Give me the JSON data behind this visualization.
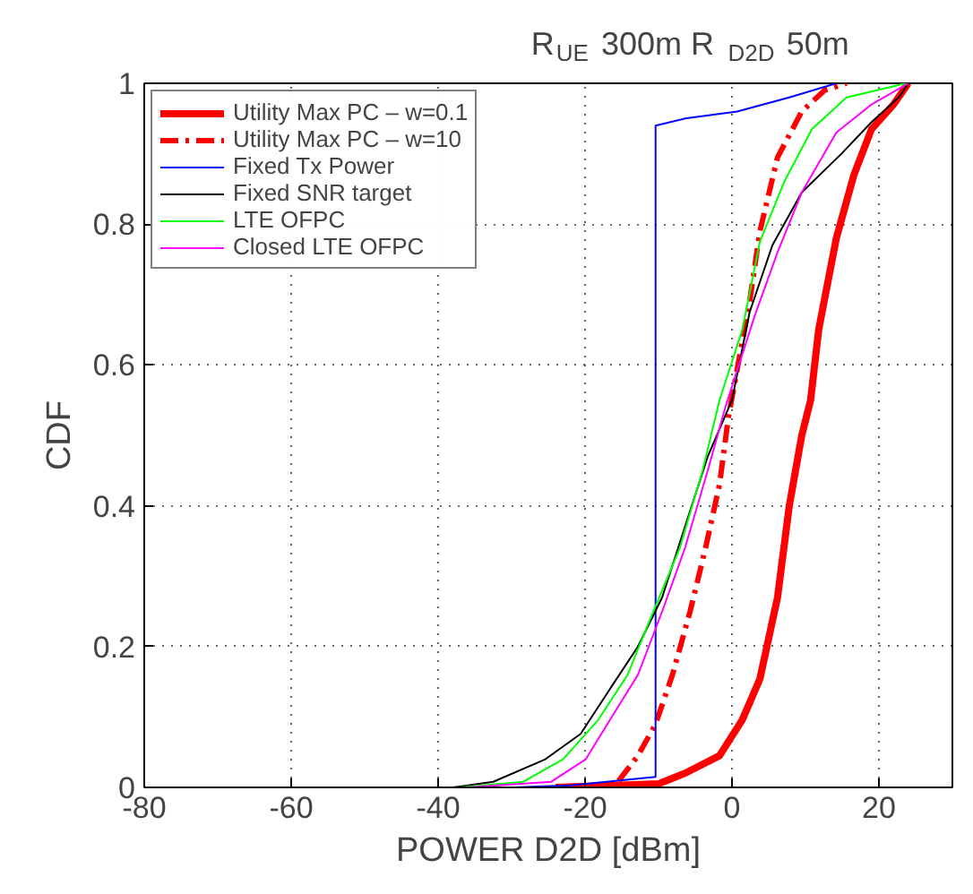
{
  "chart_data": {
    "type": "line",
    "title": "R$_{UE}$ 300m  R$_{D2D}$ 50m",
    "xlabel": "POWER D2D [dBm]",
    "ylabel": "CDF",
    "xlim": [
      -80,
      30
    ],
    "ylim": [
      0,
      1
    ],
    "xticks": [
      -80,
      -60,
      -40,
      -20,
      0,
      20
    ],
    "yticks": [
      0,
      0.2,
      0.4,
      0.6,
      0.8,
      1
    ],
    "grid": true,
    "legend": "top left",
    "marker": "none",
    "series": [
      {
        "name": "Utility Max PC – w=0.1",
        "color": "#ff0000",
        "line_style": "solid",
        "x": [
          -24,
          -10,
          -6.4,
          -1.7,
          1.4,
          3.8,
          6.2,
          7.8,
          9.5,
          10.7,
          11.8,
          14.2,
          16.6,
          19,
          22,
          24
        ],
        "values": [
          0,
          0.005,
          0.02,
          0.045,
          0.096,
          0.154,
          0.27,
          0.4,
          0.5,
          0.55,
          0.65,
          0.78,
          0.87,
          0.935,
          0.97,
          1.0
        ]
      },
      {
        "name": "Utility Max PC – w=10",
        "color": "#ff0000",
        "line_style": "dashdot",
        "x": [
          -20,
          -15.9,
          -12.8,
          -10.4,
          -8.1,
          -5.7,
          -3.6,
          -1.7,
          -0.5,
          2.4,
          3.8,
          6.2,
          9.5,
          12.6,
          15.6
        ],
        "values": [
          0,
          0.003,
          0.045,
          0.09,
          0.16,
          0.25,
          0.34,
          0.43,
          0.525,
          0.69,
          0.79,
          0.895,
          0.96,
          0.99,
          1.0
        ]
      },
      {
        "name": "Fixed Tx Power",
        "color": "#0000ff",
        "line_style": "solid",
        "x": [
          -30,
          -22,
          -10.4,
          -10.4,
          -6.4,
          0.7,
          7.8,
          14.2
        ],
        "values": [
          0,
          0.003,
          0.015,
          0.94,
          0.95,
          0.96,
          0.98,
          1.0
        ]
      },
      {
        "name": "Fixed SNR target",
        "color": "#000000",
        "line_style": "solid",
        "x": [
          -38,
          -32.5,
          -25.4,
          -20.6,
          -16.6,
          -12.8,
          -9.5,
          -6.4,
          -3.3,
          0,
          2.4,
          5.5,
          9.5,
          14.9,
          19,
          22.7,
          24
        ],
        "values": [
          0,
          0.008,
          0.04,
          0.076,
          0.14,
          0.2,
          0.27,
          0.37,
          0.47,
          0.55,
          0.675,
          0.77,
          0.845,
          0.9,
          0.945,
          0.98,
          1.0
        ]
      },
      {
        "name": "LTE OFPC",
        "color": "#00ff00",
        "line_style": "solid",
        "x": [
          -37,
          -28.4,
          -23,
          -18.2,
          -14.2,
          -11.1,
          -7.1,
          -4,
          -1.7,
          1.4,
          3.8,
          7.1,
          10.9,
          15.6,
          23.7
        ],
        "values": [
          0,
          0.008,
          0.04,
          0.096,
          0.16,
          0.24,
          0.34,
          0.45,
          0.55,
          0.65,
          0.775,
          0.86,
          0.935,
          0.98,
          1.0
        ]
      },
      {
        "name": "Closed LTE OFPC",
        "color": "#ff00ff",
        "line_style": "solid",
        "x": [
          -36,
          -24.6,
          -19.9,
          -16.6,
          -12.8,
          -9.5,
          -6.4,
          -3.3,
          -0.9,
          3.1,
          6.2,
          9.5,
          14.2,
          19,
          24
        ],
        "values": [
          0,
          0.008,
          0.04,
          0.096,
          0.16,
          0.25,
          0.34,
          0.45,
          0.54,
          0.67,
          0.76,
          0.845,
          0.93,
          0.97,
          1.0
        ]
      }
    ]
  }
}
